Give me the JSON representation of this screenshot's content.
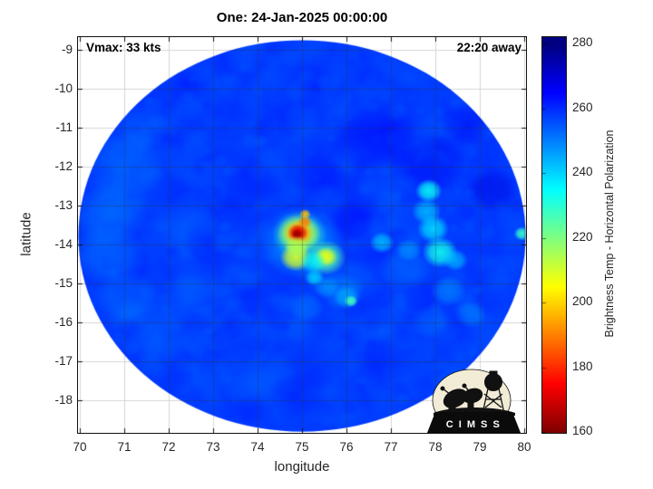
{
  "title": "One: 24-Jan-2025 00:00:00",
  "annotations": {
    "vmax": "Vmax: 33 kts",
    "eta": "22:20 away"
  },
  "axes": {
    "xlabel": "longitude",
    "ylabel": "latitude",
    "x_ticks": [
      70,
      71,
      72,
      73,
      74,
      75,
      76,
      77,
      78,
      79,
      80
    ],
    "y_ticks": [
      -9,
      -10,
      -11,
      -12,
      -13,
      -14,
      -15,
      -16,
      -17,
      -18
    ],
    "xlim": [
      69.96,
      80.04
    ],
    "ylim": [
      -18.84,
      -8.67
    ]
  },
  "colorbar": {
    "label": "Brightness Temp - Horizontal Polarization",
    "ticks": [
      280,
      260,
      240,
      220,
      200,
      180,
      160
    ],
    "min": 160,
    "max": 280,
    "bar_range": [
      160,
      282
    ],
    "colormap": "jet-reversed",
    "color_anchors": {
      "280": "#000080",
      "265": "#0000ff",
      "235": "#00ffff",
      "205": "#ffff00",
      "175": "#ff0000",
      "160": "#800000"
    }
  },
  "logo": {
    "text": "C I M S S"
  },
  "chart_data": {
    "type": "heatmap",
    "title": "One: 24-Jan-2025 00:00:00",
    "xlabel": "longitude",
    "ylabel": "latitude",
    "value_label": "Brightness Temp - Horizontal Polarization (K)",
    "value_range": [
      160,
      280
    ],
    "grid": true,
    "swath": {
      "center_lon": 75.0,
      "center_lat": -13.78,
      "radius_deg": 5.03
    },
    "background_temp_K": 258,
    "texture": {
      "seed": 12,
      "count": 1500,
      "temps": [
        250,
        264
      ],
      "radius": [
        0.12,
        0.5
      ],
      "alpha": [
        0.08,
        0.25
      ]
    },
    "features": [
      {
        "lon": 71.0,
        "lat": -12.0,
        "r": 0.9,
        "t": 251,
        "a": 0.45
      },
      {
        "lon": 70.7,
        "lat": -13.2,
        "r": 0.8,
        "t": 249,
        "a": 0.5
      },
      {
        "lon": 70.7,
        "lat": -14.3,
        "r": 0.8,
        "t": 250,
        "a": 0.5
      },
      {
        "lon": 71.1,
        "lat": -15.4,
        "r": 0.7,
        "t": 251,
        "a": 0.45
      },
      {
        "lon": 71.8,
        "lat": -16.4,
        "r": 0.7,
        "t": 252,
        "a": 0.4
      },
      {
        "lon": 71.4,
        "lat": -11.0,
        "r": 0.6,
        "t": 252,
        "a": 0.4
      },
      {
        "lon": 72.9,
        "lat": -17.4,
        "r": 0.6,
        "t": 253,
        "a": 0.35
      },
      {
        "lon": 72.2,
        "lat": -13.6,
        "r": 0.7,
        "t": 253,
        "a": 0.35
      },
      {
        "lon": 72.6,
        "lat": -15.0,
        "r": 0.6,
        "t": 253,
        "a": 0.35
      },
      {
        "lon": 74.2,
        "lat": -17.5,
        "r": 0.7,
        "t": 254,
        "a": 0.3
      },
      {
        "lon": 76.6,
        "lat": -11.2,
        "r": 1.0,
        "t": 265,
        "a": 0.5
      },
      {
        "lon": 77.9,
        "lat": -11.9,
        "r": 0.8,
        "t": 266,
        "a": 0.5
      },
      {
        "lon": 79.3,
        "lat": -12.6,
        "r": 0.6,
        "t": 268,
        "a": 0.55
      },
      {
        "lon": 78.7,
        "lat": -10.9,
        "r": 0.6,
        "t": 266,
        "a": 0.45
      },
      {
        "lon": 75.4,
        "lat": -12.2,
        "r": 0.6,
        "t": 263,
        "a": 0.45
      },
      {
        "lon": 76.1,
        "lat": -13.4,
        "r": 0.55,
        "t": 265,
        "a": 0.5
      },
      {
        "lon": 73.9,
        "lat": -12.4,
        "r": 0.7,
        "t": 262,
        "a": 0.4
      },
      {
        "lon": 76.9,
        "lat": -17.0,
        "r": 0.8,
        "t": 263,
        "a": 0.4
      },
      {
        "lon": 74.9,
        "lat": -17.9,
        "r": 0.7,
        "t": 262,
        "a": 0.4
      },
      {
        "lon": 77.3,
        "lat": -14.6,
        "r": 0.6,
        "t": 251,
        "a": 0.45
      },
      {
        "lon": 78.3,
        "lat": -15.2,
        "r": 0.4,
        "t": 246,
        "a": 0.55
      },
      {
        "lon": 78.8,
        "lat": -15.8,
        "r": 0.35,
        "t": 248,
        "a": 0.5
      },
      {
        "lon": 77.9,
        "lat": -16.0,
        "r": 0.45,
        "t": 250,
        "a": 0.4
      },
      {
        "lon": 75.9,
        "lat": -15.2,
        "r": 0.5,
        "t": 247,
        "a": 0.5
      },
      {
        "lon": 75.1,
        "lat": -15.6,
        "r": 0.4,
        "t": 249,
        "a": 0.45
      },
      {
        "lon": 76.8,
        "lat": -13.95,
        "r": 0.28,
        "t": 240,
        "a": 0.75
      },
      {
        "lon": 77.4,
        "lat": -14.15,
        "r": 0.3,
        "t": 246,
        "a": 0.6
      },
      {
        "lon": 77.85,
        "lat": -12.62,
        "r": 0.3,
        "t": 234,
        "a": 0.9
      },
      {
        "lon": 77.8,
        "lat": -13.15,
        "r": 0.33,
        "t": 241,
        "a": 0.75
      },
      {
        "lon": 77.95,
        "lat": -13.6,
        "r": 0.36,
        "t": 238,
        "a": 0.85
      },
      {
        "lon": 78.1,
        "lat": -14.2,
        "r": 0.4,
        "t": 233,
        "a": 0.9
      },
      {
        "lon": 78.45,
        "lat": -14.4,
        "r": 0.28,
        "t": 241,
        "a": 0.7
      },
      {
        "lon": 79.95,
        "lat": -13.72,
        "r": 0.18,
        "t": 229,
        "a": 0.95
      },
      {
        "lon": 75.28,
        "lat": -14.85,
        "r": 0.22,
        "t": 238,
        "a": 0.8
      },
      {
        "lon": 75.55,
        "lat": -15.1,
        "r": 0.3,
        "t": 246,
        "a": 0.6
      },
      {
        "lon": 76.0,
        "lat": -15.35,
        "r": 0.3,
        "t": 242,
        "a": 0.6
      },
      {
        "lon": 76.1,
        "lat": -15.45,
        "r": 0.15,
        "t": 227,
        "a": 0.95
      },
      {
        "lon": 75.0,
        "lat": -13.95,
        "r": 0.95,
        "t": 243,
        "a": 0.55
      },
      {
        "lon": 74.95,
        "lat": -13.75,
        "r": 0.62,
        "t": 228,
        "a": 0.8
      },
      {
        "lon": 74.93,
        "lat": -13.72,
        "r": 0.5,
        "t": 212,
        "a": 0.95
      },
      {
        "lon": 74.93,
        "lat": -13.7,
        "r": 0.34,
        "t": 193,
        "a": 1
      },
      {
        "lon": 74.91,
        "lat": -13.7,
        "r": 0.23,
        "t": 172,
        "a": 1
      },
      {
        "lon": 74.89,
        "lat": -13.73,
        "r": 0.13,
        "t": 163,
        "a": 1
      },
      {
        "lon": 75.06,
        "lat": -13.42,
        "r": 0.16,
        "t": 190,
        "a": 0.95
      },
      {
        "lon": 75.07,
        "lat": -13.22,
        "r": 0.13,
        "t": 198,
        "a": 0.9
      },
      {
        "lon": 74.86,
        "lat": -14.33,
        "r": 0.36,
        "t": 210,
        "a": 0.95
      },
      {
        "lon": 74.88,
        "lat": -14.05,
        "r": 0.28,
        "t": 215,
        "a": 0.85
      },
      {
        "lon": 75.54,
        "lat": -14.34,
        "r": 0.45,
        "t": 225,
        "a": 0.85
      },
      {
        "lon": 75.54,
        "lat": -14.32,
        "r": 0.25,
        "t": 207,
        "a": 0.95
      },
      {
        "lon": 75.25,
        "lat": -14.45,
        "r": 0.3,
        "t": 235,
        "a": 0.7
      }
    ]
  }
}
